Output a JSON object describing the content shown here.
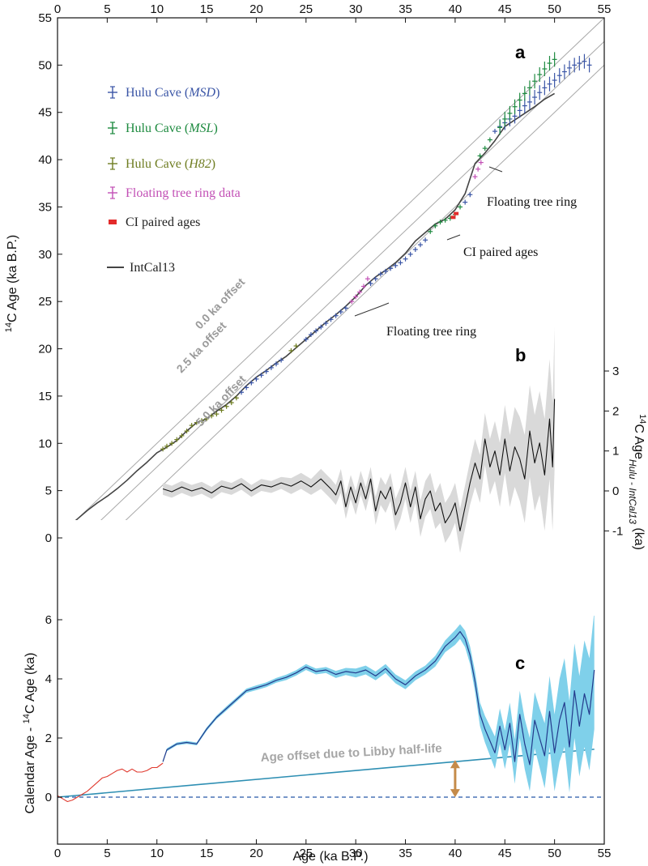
{
  "chart_data": [
    {
      "panel": "a",
      "type": "scatter",
      "panel_label": "a",
      "xlabel": "Age (ka B.P.)",
      "ylabel_parts": {
        "sup": "14",
        "rest": "C Age (ka B.P.)"
      },
      "xlim": [
        0,
        55
      ],
      "ylim": [
        0,
        55
      ],
      "x_ticks": [
        0,
        5,
        10,
        15,
        20,
        25,
        30,
        35,
        40,
        45,
        50,
        55
      ],
      "y_ticks": [
        0,
        5,
        10,
        15,
        20,
        25,
        30,
        35,
        40,
        45,
        50,
        55
      ],
      "offset_lines": [
        {
          "label": "0.0 ka offset",
          "offset": 0
        },
        {
          "label": "2.5 ka offset",
          "offset": 2.5
        },
        {
          "label": "5.0 ka offset",
          "offset": 5.0
        }
      ],
      "legend": [
        {
          "name": "Hulu Cave",
          "suffix": "MSD",
          "color": "#3a55a6",
          "symbol": "errorbar"
        },
        {
          "name": "Hulu Cave",
          "suffix": "MSL",
          "color": "#1d8a3f",
          "symbol": "errorbar"
        },
        {
          "name": "Hulu Cave",
          "suffix": "H82",
          "color": "#6f7d22",
          "symbol": "errorbar"
        },
        {
          "name": "Floating tree ring data",
          "suffix": "",
          "color": "#c24fb5",
          "symbol": "errorbar"
        },
        {
          "name": "CI paired ages",
          "suffix": "",
          "color": "#e32b2b",
          "symbol": "square"
        },
        {
          "name": "IntCal13",
          "suffix": "",
          "color": "#444444",
          "symbol": "line"
        }
      ],
      "annotations": [
        {
          "text": "Floating tree ring",
          "x": 31,
          "y": 26
        },
        {
          "text": "CI paired ages",
          "x": 40,
          "y": 33
        },
        {
          "text": "Floating tree ring",
          "x": 43,
          "y": 39
        }
      ],
      "series": [
        {
          "name": "IntCal13",
          "color": "#444444",
          "x": [
            0,
            1,
            2,
            3,
            4,
            5,
            6,
            7,
            8,
            9,
            10,
            11,
            12,
            13,
            14,
            15,
            16,
            17,
            18,
            19,
            20,
            21,
            22,
            23,
            24,
            25,
            26,
            27,
            28,
            29,
            30,
            31,
            32,
            33,
            34,
            35,
            36,
            37,
            38,
            39,
            40,
            41,
            42,
            43,
            44,
            45,
            46,
            47,
            48,
            49,
            50
          ],
          "y": [
            0,
            1.1,
            2.0,
            2.9,
            3.7,
            4.4,
            5.2,
            6.1,
            7.1,
            8.0,
            9.0,
            9.6,
            10.3,
            11.3,
            12.2,
            12.6,
            13.4,
            14.1,
            15.0,
            16.1,
            17.0,
            17.7,
            18.5,
            19.2,
            20.1,
            21.0,
            21.9,
            22.8,
            23.6,
            24.5,
            25.5,
            26.7,
            27.6,
            28.3,
            29.1,
            30.1,
            31.4,
            32.3,
            33.2,
            33.7,
            34.7,
            36.4,
            39.6,
            40.7,
            42.0,
            43.5,
            44.2,
            44.9,
            45.6,
            46.4,
            47.0
          ]
        },
        {
          "name": "Hulu Cave (H82)",
          "color": "#6f7d22",
          "x": [
            10.6,
            11.0,
            11.5,
            12.0,
            12.5,
            13.0,
            13.5,
            14.0,
            14.5,
            15.0,
            15.5,
            16.0,
            16.5,
            17.0,
            17.5,
            18.0,
            23.5,
            24.0
          ],
          "y": [
            9.4,
            9.7,
            10.0,
            10.4,
            10.8,
            11.3,
            11.9,
            12.2,
            12.4,
            12.6,
            12.9,
            13.1,
            13.5,
            13.9,
            14.3,
            14.8,
            19.8,
            20.3
          ]
        },
        {
          "name": "Hulu Cave (MSD)",
          "color": "#3a55a6",
          "x": [
            18.5,
            19.0,
            19.5,
            20.0,
            20.5,
            21.0,
            21.5,
            22.0,
            22.5,
            25.0,
            25.5,
            26.0,
            26.5,
            27.0,
            27.5,
            28.0,
            28.5,
            29.0,
            31.5,
            32.0,
            32.5,
            33.0,
            33.5,
            34.0,
            34.5,
            35.0,
            35.5,
            36.0,
            36.5,
            37.0,
            41.0,
            41.5,
            44.0,
            44.5,
            45.0,
            45.5,
            46.0,
            46.5,
            47.0,
            47.5,
            48.0,
            48.5,
            49.0,
            49.5,
            50.0,
            50.5,
            51.0,
            51.5,
            52.0,
            52.5,
            53.0,
            53.5
          ],
          "y": [
            15.4,
            15.9,
            16.4,
            16.8,
            17.2,
            17.6,
            18.0,
            18.4,
            18.8,
            21.0,
            21.5,
            21.9,
            22.3,
            22.7,
            23.1,
            23.5,
            23.9,
            24.3,
            26.9,
            27.4,
            27.9,
            28.2,
            28.5,
            28.8,
            29.1,
            29.5,
            30.0,
            30.5,
            31.0,
            31.5,
            35.5,
            36.3,
            43.0,
            43.5,
            43.9,
            44.3,
            44.6,
            45.2,
            45.7,
            46.1,
            46.6,
            47.1,
            47.6,
            48.0,
            48.4,
            48.9,
            49.3,
            49.7,
            50.0,
            50.2,
            50.4,
            50.0
          ]
        },
        {
          "name": "Hulu Cave (MSL)",
          "color": "#1d8a3f",
          "x": [
            37.5,
            38.0,
            38.5,
            39.0,
            39.5,
            40.0,
            40.5,
            42.5,
            43.0,
            43.5,
            44.5,
            45.0,
            45.5,
            46.0,
            46.5,
            47.0,
            47.5,
            48.0,
            48.5,
            49.0,
            49.5,
            50.0
          ],
          "y": [
            32.4,
            33.0,
            33.4,
            33.6,
            33.8,
            34.2,
            35.0,
            40.4,
            41.2,
            42.1,
            43.4,
            44.3,
            44.9,
            45.6,
            46.3,
            47.0,
            47.6,
            48.3,
            49.0,
            49.6,
            50.2,
            50.6
          ]
        },
        {
          "name": "Floating tree ring data",
          "color": "#c24fb5",
          "x": [
            29.6,
            30.0,
            30.4,
            30.8,
            31.2,
            42.0,
            42.3,
            42.6
          ],
          "y": [
            25.0,
            25.5,
            26.0,
            26.6,
            27.4,
            38.2,
            39.0,
            39.7
          ]
        },
        {
          "name": "CI paired ages",
          "color": "#e32b2b",
          "x": [
            39.8,
            40.1
          ],
          "y": [
            33.9,
            34.3
          ]
        }
      ]
    },
    {
      "panel": "b",
      "type": "line",
      "panel_label": "b",
      "ylabel_parts": {
        "sup": "14",
        "rest": "C Age",
        "sub": "Hulu - IntCal13",
        "unit": " (ka)"
      },
      "xlim": [
        0,
        55
      ],
      "ylim": [
        -1.3,
        3.5
      ],
      "y_ticks": [
        -1,
        0,
        1,
        2,
        3
      ],
      "series": [
        {
          "name": "difference",
          "color": "#111111",
          "band_color": "#d9d9d9",
          "x": [
            10.6,
            11.5,
            12.5,
            13.5,
            14.5,
            15.5,
            16.5,
            17.5,
            18.5,
            19.5,
            20.5,
            21.5,
            22.5,
            23.5,
            24.5,
            25.5,
            26.5,
            27.5,
            28.0,
            28.5,
            29.0,
            29.5,
            30.0,
            30.5,
            31.0,
            31.5,
            32.0,
            32.5,
            33.0,
            33.5,
            34.0,
            34.5,
            35.0,
            35.5,
            36.0,
            36.5,
            37.0,
            37.5,
            38.0,
            38.5,
            39.0,
            39.5,
            40.0,
            40.5,
            41.0,
            41.5,
            42.0,
            42.5,
            43.0,
            43.5,
            44.0,
            44.5,
            45.0,
            45.5,
            46.0,
            46.5,
            47.0,
            47.5,
            48.0,
            48.5,
            49.0,
            49.5,
            49.8,
            50.0
          ],
          "y": [
            0.05,
            -0.02,
            0.1,
            0.0,
            0.08,
            -0.05,
            0.12,
            0.05,
            0.18,
            0.0,
            0.15,
            0.1,
            0.2,
            0.12,
            0.25,
            0.1,
            0.3,
            0.05,
            -0.1,
            0.25,
            -0.4,
            0.1,
            -0.3,
            0.2,
            -0.2,
            0.3,
            -0.5,
            0.0,
            -0.2,
            0.1,
            -0.6,
            -0.3,
            0.2,
            -0.4,
            0.1,
            -0.7,
            -0.2,
            0.0,
            -0.5,
            -0.3,
            -0.8,
            -0.6,
            -0.3,
            -1.0,
            -0.4,
            0.2,
            0.7,
            0.3,
            1.3,
            0.6,
            1.0,
            0.4,
            1.3,
            0.5,
            1.1,
            0.8,
            0.3,
            1.5,
            0.7,
            1.2,
            0.4,
            1.8,
            0.6,
            2.3
          ],
          "band": [
            0.15,
            0.15,
            0.15,
            0.15,
            0.15,
            0.15,
            0.15,
            0.15,
            0.15,
            0.15,
            0.15,
            0.15,
            0.15,
            0.2,
            0.2,
            0.2,
            0.25,
            0.25,
            0.25,
            0.3,
            0.3,
            0.3,
            0.3,
            0.3,
            0.3,
            0.3,
            0.35,
            0.35,
            0.35,
            0.35,
            0.4,
            0.4,
            0.4,
            0.4,
            0.4,
            0.45,
            0.45,
            0.45,
            0.45,
            0.5,
            0.5,
            0.5,
            0.5,
            0.55,
            0.55,
            0.55,
            0.6,
            0.6,
            0.65,
            0.7,
            0.75,
            0.8,
            0.85,
            0.9,
            1.0,
            1.05,
            1.1,
            1.15,
            1.2,
            1.3,
            1.4,
            1.5,
            1.6,
            1.8
          ]
        }
      ]
    },
    {
      "panel": "c",
      "type": "line",
      "panel_label": "c",
      "xlabel": "Age (ka B.P.)",
      "ylabel_parts": {
        "pre": "Calendar Age - ",
        "sup": "14",
        "rest": "C Age (ka)"
      },
      "xlim": [
        0,
        55
      ],
      "ylim": [
        -1,
        6.5
      ],
      "x_ticks": [
        0,
        5,
        10,
        15,
        20,
        25,
        30,
        35,
        40,
        45,
        50,
        55
      ],
      "y_ticks": [
        0,
        2,
        4,
        6
      ],
      "libby_label": "Age offset due to Libby half-life",
      "libby_line": {
        "x": [
          0,
          54
        ],
        "y": [
          0,
          1.62
        ],
        "color": "#2e8fb3"
      },
      "zero_line": {
        "y": 0,
        "color": "#4a73b5"
      },
      "arrow": {
        "x": 40,
        "y_from": 0.05,
        "y_to": 1.2,
        "color": "#c58b4a"
      },
      "series": [
        {
          "name": "IntCal13 (0-10.6 ka)",
          "color": "#e03a2f",
          "x": [
            0,
            0.5,
            1,
            1.5,
            2,
            2.5,
            3,
            3.5,
            4,
            4.5,
            5,
            5.5,
            6,
            6.5,
            7,
            7.5,
            8,
            8.5,
            9,
            9.5,
            10,
            10.6
          ],
          "y": [
            0.05,
            -0.05,
            -0.15,
            -0.1,
            0.0,
            0.1,
            0.2,
            0.35,
            0.5,
            0.65,
            0.7,
            0.8,
            0.9,
            0.95,
            0.85,
            0.95,
            0.85,
            0.85,
            0.9,
            1.0,
            1.0,
            1.15
          ]
        },
        {
          "name": "Hulu Cave",
          "color": "#233a8c",
          "band_color": "#7fd0ea",
          "x": [
            10.6,
            11,
            12,
            13,
            14,
            15,
            16,
            17,
            18,
            19,
            20,
            21,
            22,
            23,
            24,
            25,
            26,
            27,
            28,
            29,
            30,
            31,
            32,
            33,
            34,
            35,
            36,
            37,
            38,
            39,
            40,
            40.5,
            41,
            41.5,
            42,
            42.5,
            43,
            43.5,
            44,
            44.5,
            45,
            45.5,
            46,
            46.5,
            47,
            47.5,
            48,
            48.5,
            49,
            49.5,
            50,
            50.5,
            51,
            51.5,
            52,
            52.5,
            53,
            53.5,
            54
          ],
          "y": [
            1.2,
            1.6,
            1.8,
            1.85,
            1.8,
            2.3,
            2.7,
            3.0,
            3.3,
            3.6,
            3.7,
            3.8,
            3.95,
            4.05,
            4.2,
            4.4,
            4.25,
            4.3,
            4.15,
            4.25,
            4.2,
            4.3,
            4.1,
            4.35,
            4.0,
            3.8,
            4.1,
            4.3,
            4.6,
            5.1,
            5.4,
            5.6,
            5.35,
            4.8,
            3.9,
            2.8,
            2.3,
            1.9,
            1.5,
            2.4,
            1.6,
            2.5,
            1.2,
            2.8,
            1.8,
            1.1,
            2.6,
            2.0,
            1.4,
            2.9,
            1.5,
            2.6,
            3.2,
            1.7,
            3.6,
            2.4,
            3.5,
            2.8,
            4.3
          ],
          "band": [
            0.05,
            0.05,
            0.05,
            0.05,
            0.05,
            0.06,
            0.06,
            0.07,
            0.07,
            0.07,
            0.08,
            0.08,
            0.08,
            0.09,
            0.09,
            0.1,
            0.1,
            0.1,
            0.12,
            0.12,
            0.15,
            0.15,
            0.15,
            0.15,
            0.15,
            0.15,
            0.15,
            0.15,
            0.18,
            0.2,
            0.25,
            0.25,
            0.28,
            0.3,
            0.35,
            0.4,
            0.45,
            0.5,
            0.55,
            0.6,
            0.65,
            0.7,
            0.75,
            0.8,
            0.85,
            0.9,
            0.95,
            1.0,
            1.1,
            1.2,
            1.3,
            1.4,
            1.5,
            1.55,
            1.6,
            1.7,
            1.8,
            1.9,
            2.0
          ]
        }
      ]
    }
  ]
}
